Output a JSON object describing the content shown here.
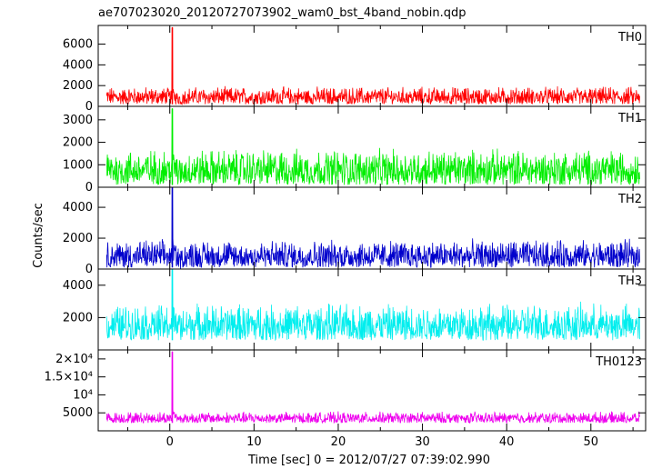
{
  "title": "ae707023020_20120727073902_wam0_bst_4band_nobin.qdp",
  "ylabel": "Counts/sec",
  "xlabel": "Time [sec] 0 = 2012/07/27 07:39:02.990",
  "x_ticks": [
    "0",
    "10",
    "20",
    "30",
    "40",
    "50"
  ],
  "chart_data": [
    {
      "type": "line",
      "label": "TH0",
      "color": "#ff0000",
      "xlim": [
        -8.5,
        56.5
      ],
      "ylim": [
        0,
        7800
      ],
      "y_ticks": [
        0,
        2000,
        4000,
        6000
      ],
      "y_tick_labels": [
        "0",
        "2000",
        "4000",
        "6000"
      ],
      "baseline": 700,
      "noise_range": [
        200,
        2000
      ],
      "burst": {
        "x": 0.3,
        "peak": 7600,
        "after": 1200
      }
    },
    {
      "type": "line",
      "label": "TH1",
      "color": "#00ee00",
      "xlim": [
        -8.5,
        56.5
      ],
      "ylim": [
        0,
        3600
      ],
      "y_ticks": [
        0,
        1000,
        2000,
        3000
      ],
      "y_tick_labels": [
        "0",
        "1000",
        "2000",
        "3000"
      ],
      "baseline": 600,
      "noise_range": [
        100,
        1800
      ],
      "burst": {
        "x": 0.3,
        "peak": 3500,
        "after": 1200
      }
    },
    {
      "type": "line",
      "label": "TH2",
      "color": "#0000cc",
      "xlim": [
        -8.5,
        56.5
      ],
      "ylim": [
        0,
        5300
      ],
      "y_ticks": [
        0,
        2000,
        4000
      ],
      "y_tick_labels": [
        "0",
        "2000",
        "4000"
      ],
      "baseline": 600,
      "noise_range": [
        100,
        2000
      ],
      "burst": {
        "x": 0.3,
        "peak": 5300,
        "after": 1500
      }
    },
    {
      "type": "line",
      "label": "TH3",
      "color": "#00eeee",
      "xlim": [
        -8.5,
        56.5
      ],
      "ylim": [
        0,
        5000
      ],
      "y_ticks": [
        2000,
        4000
      ],
      "y_tick_labels": [
        "2000",
        "4000"
      ],
      "baseline": 1400,
      "noise_range": [
        600,
        3000
      ],
      "burst": {
        "x": 0.3,
        "peak": 5000,
        "after": 2200
      }
    },
    {
      "type": "line",
      "label": "TH0123",
      "color": "#ee00ee",
      "xlim": [
        -8.5,
        56.5
      ],
      "ylim": [
        0,
        22500
      ],
      "y_ticks": [
        5000,
        10000,
        15000,
        20000
      ],
      "y_tick_labels": [
        "5000",
        "10⁴",
        "1.5×10⁴",
        "2×10⁴"
      ],
      "baseline": 3300,
      "noise_range": [
        2200,
        5500
      ],
      "burst": {
        "x": 0.3,
        "peak": 22000,
        "after": 5500
      }
    }
  ]
}
